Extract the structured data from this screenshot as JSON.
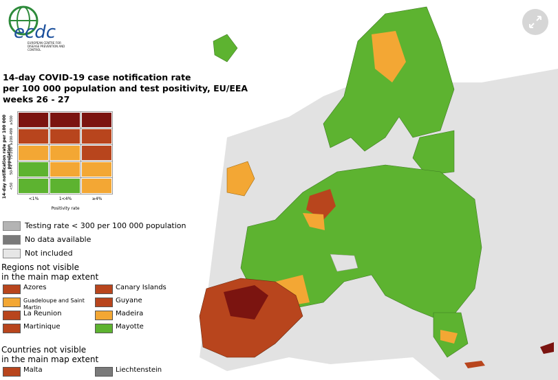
{
  "header": {
    "logo": "ecdc",
    "org": "EUROPEAN CENTRE FOR DISEASE PREVENTION AND CONTROL",
    "title": [
      "14-day COVID-19 case notification rate",
      "per 100 000 population and test positivity, EU/EEA",
      "weeks 26 - 27"
    ]
  },
  "matrix": {
    "y_label": "14-day notification rate per 100 000 population",
    "rows": [
      "≥500",
      "≥200-499",
      "75-200",
      "50-74",
      "<50"
    ],
    "columns": [
      "<1%",
      "1<4%",
      "≥4%"
    ],
    "x_label": "Positivity rate",
    "cells": [
      [
        "#7b1410",
        "#7b1410",
        "#7b1410"
      ],
      [
        "#b8451d",
        "#b8451d",
        "#b8451d"
      ],
      [
        "#f3a734",
        "#f3a734",
        "#b8451d"
      ],
      [
        "#5db330",
        "#f3a734",
        "#f3a734"
      ],
      [
        "#5db330",
        "#5db330",
        "#f3a734"
      ]
    ]
  },
  "legend": [
    {
      "label": "Testing rate < 300 per 100 000 population",
      "color": "#b4b4b4"
    },
    {
      "label": "No data available",
      "color": "#7a7a7a"
    },
    {
      "label": "Not included",
      "color": "#e6e6e6"
    }
  ],
  "regions": {
    "title": [
      "Regions not visible",
      "in the main map extent"
    ],
    "items": [
      {
        "label": "Azores",
        "color": "#b8451d"
      },
      {
        "label": "Canary Islands",
        "color": "#b8451d"
      },
      {
        "label": "Guadeloupe and Saint Martin",
        "color": "#f3a734"
      },
      {
        "label": "Guyane",
        "color": "#b8451d"
      },
      {
        "label": "La Reunion",
        "color": "#b8451d"
      },
      {
        "label": "Madeira",
        "color": "#f3a734"
      },
      {
        "label": "Martinique",
        "color": "#b8451d"
      },
      {
        "label": "Mayotte",
        "color": "#5db330"
      }
    ]
  },
  "countries": {
    "title": [
      "Countries not visible",
      "in the main map extent"
    ],
    "items": [
      {
        "label": "Malta",
        "color": "#b8451d"
      },
      {
        "label": "Liechtenstein",
        "color": "#7a7a7a"
      }
    ]
  }
}
